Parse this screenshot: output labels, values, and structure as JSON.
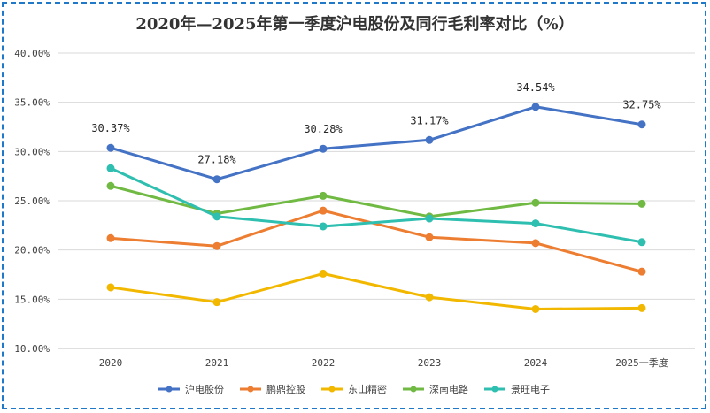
{
  "chart_data": {
    "type": "line",
    "title": "2020年—2025年第一季度沪电股份及同行毛利率对比（%）",
    "categories": [
      "2020",
      "2021",
      "2022",
      "2023",
      "2024",
      "2025一季度"
    ],
    "ylim": [
      10,
      40
    ],
    "yticks": [
      10,
      15,
      20,
      25,
      30,
      35,
      40
    ],
    "ytick_labels": [
      "10.00%",
      "15.00%",
      "20.00%",
      "25.00%",
      "30.00%",
      "35.00%",
      "40.00%"
    ],
    "grid": true,
    "legend_position": "bottom",
    "series": [
      {
        "name": "沪电股份",
        "color": "#4472c4",
        "values": [
          30.37,
          27.18,
          30.28,
          31.17,
          34.54,
          32.75
        ],
        "data_labels": [
          "30.37%",
          "27.18%",
          "30.28%",
          "31.17%",
          "34.54%",
          "32.75%"
        ]
      },
      {
        "name": "鹏鼎控股",
        "color": "#ed7d31",
        "values": [
          21.2,
          20.4,
          24.0,
          21.3,
          20.7,
          17.8
        ]
      },
      {
        "name": "东山精密",
        "color": "#f2b800",
        "values": [
          16.2,
          14.7,
          17.6,
          15.2,
          14.0,
          14.1
        ]
      },
      {
        "name": "深南电路",
        "color": "#70b943",
        "values": [
          26.5,
          23.7,
          25.5,
          23.4,
          24.8,
          24.7
        ]
      },
      {
        "name": "景旺电子",
        "color": "#2fbfb0",
        "values": [
          28.3,
          23.4,
          22.4,
          23.2,
          22.7,
          20.8
        ]
      }
    ]
  }
}
